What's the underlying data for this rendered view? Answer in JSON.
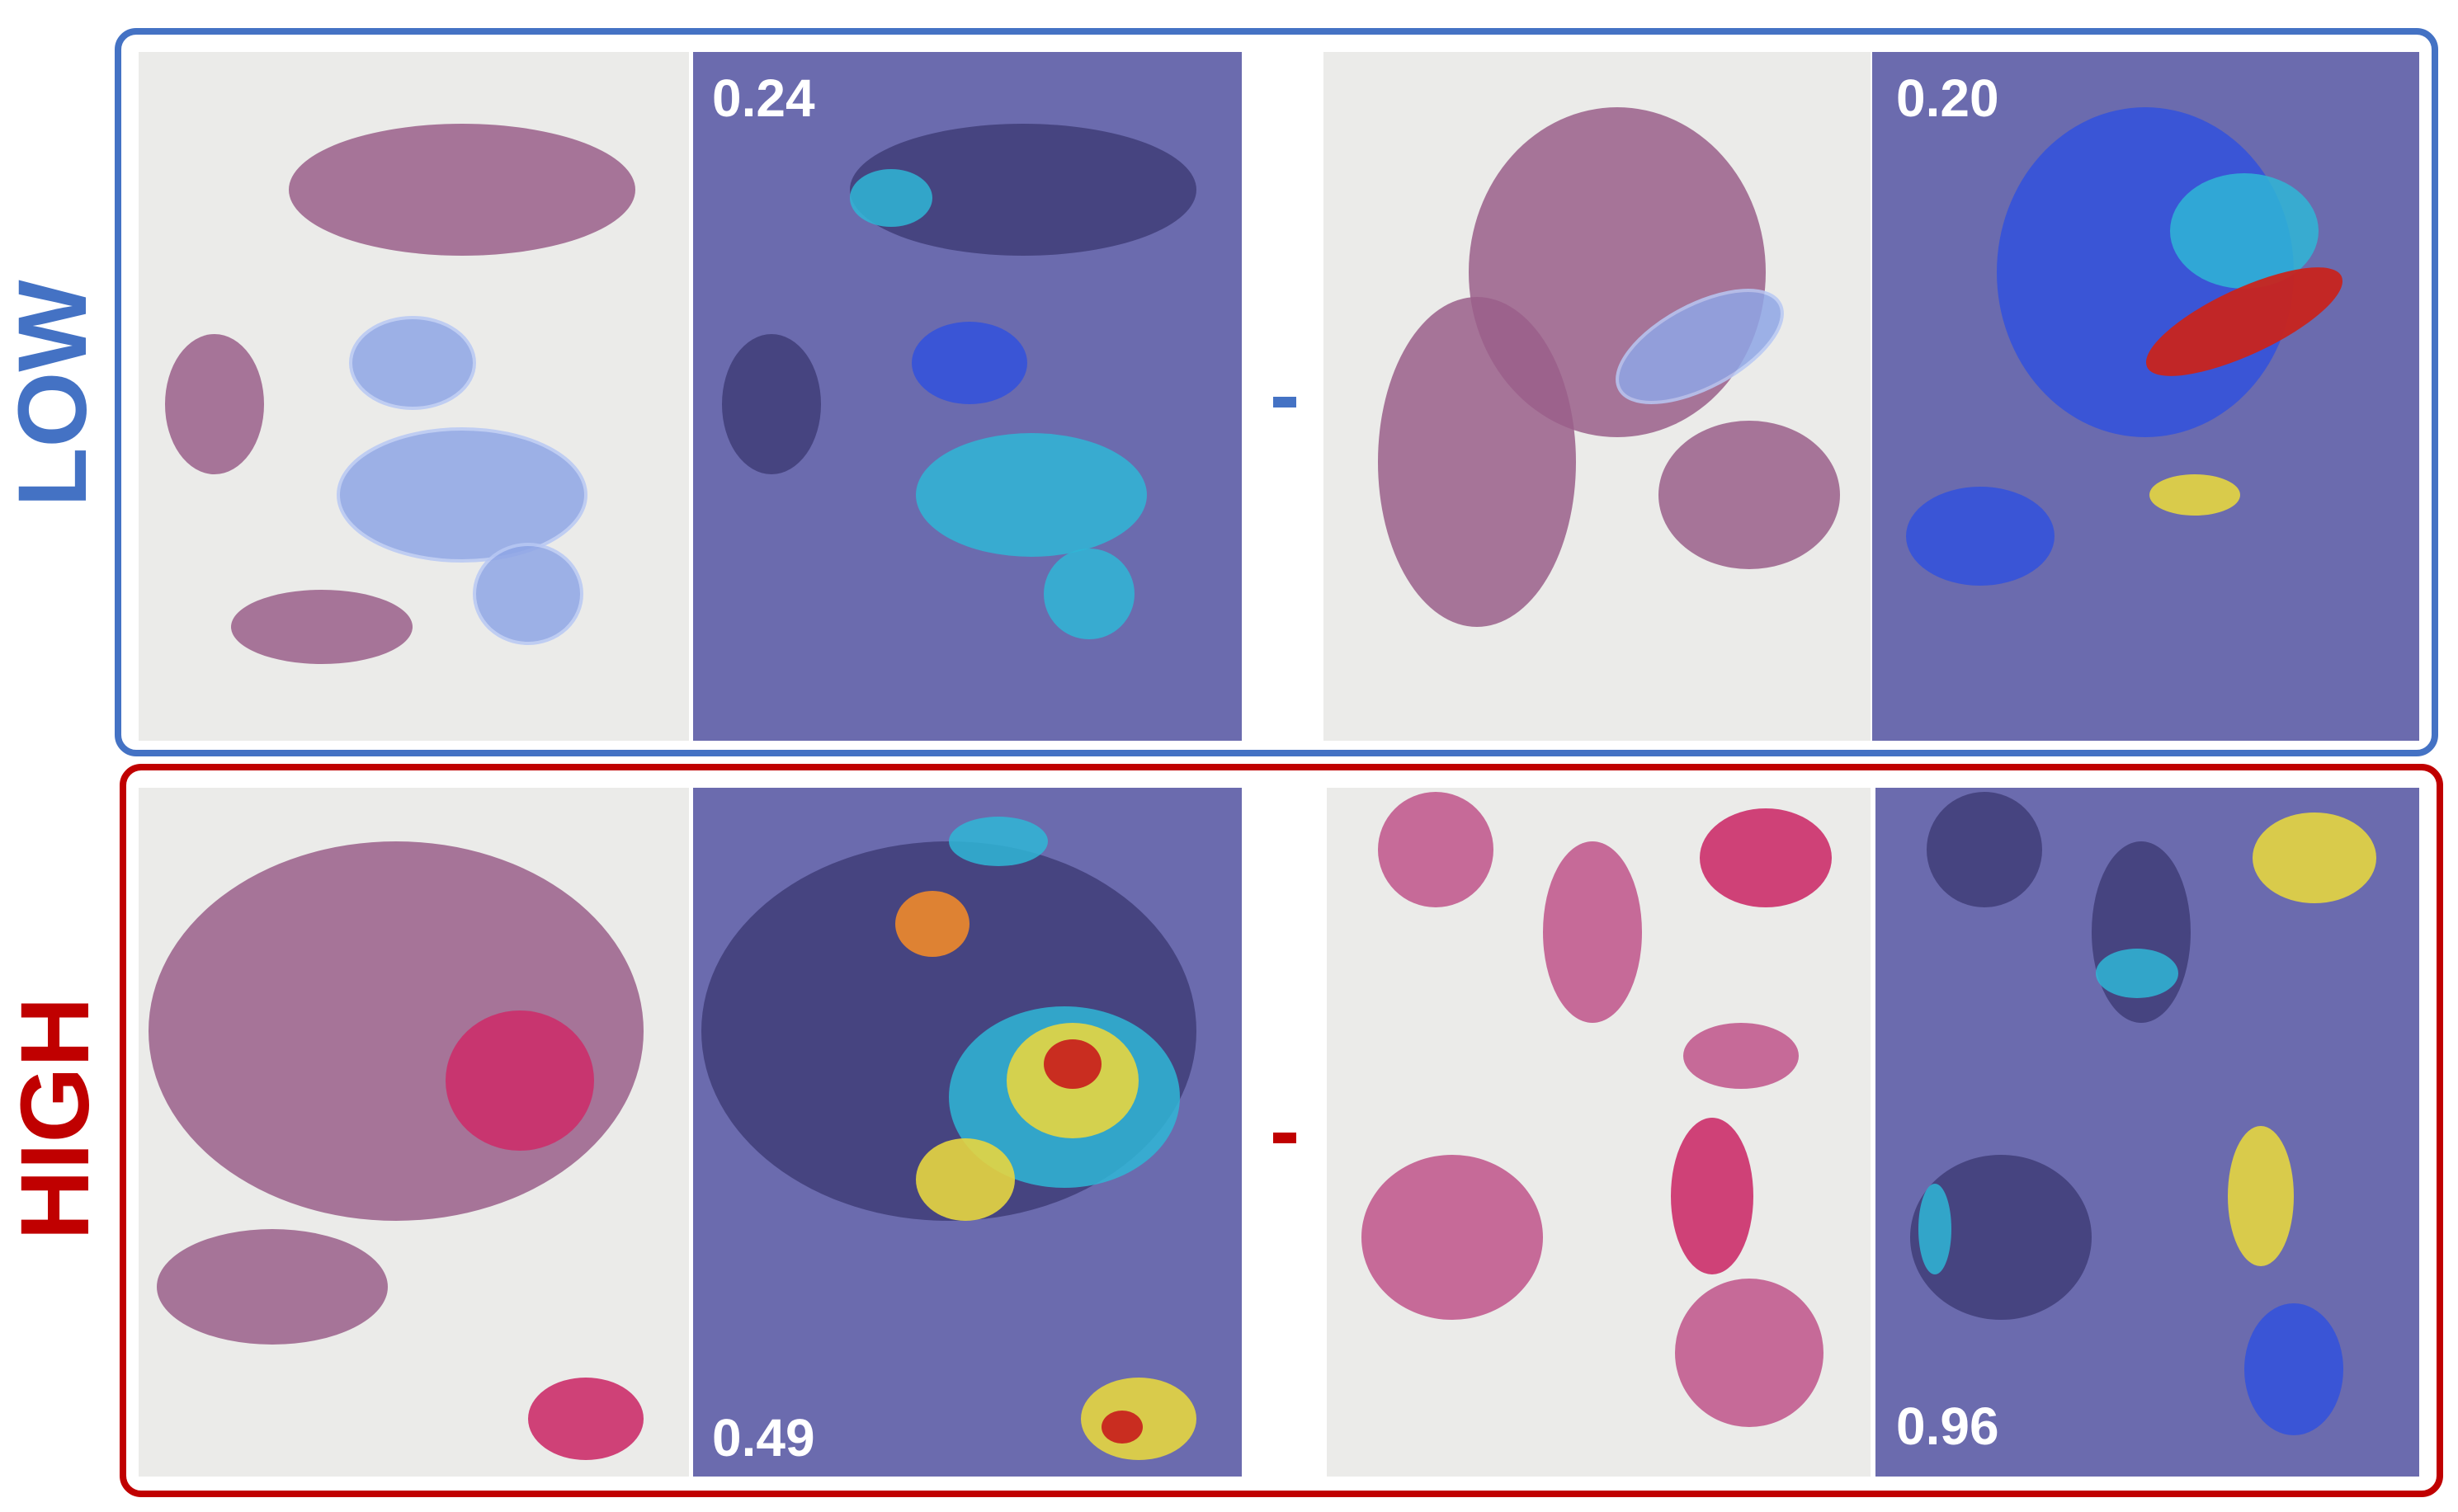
{
  "rows": [
    {
      "label": "LOW",
      "pairs": [
        {
          "score": "0.24"
        },
        {
          "score": "0.20"
        }
      ]
    },
    {
      "label": "HIGH",
      "pairs": [
        {
          "score": "0.49"
        },
        {
          "score": "0.96"
        }
      ]
    }
  ]
}
